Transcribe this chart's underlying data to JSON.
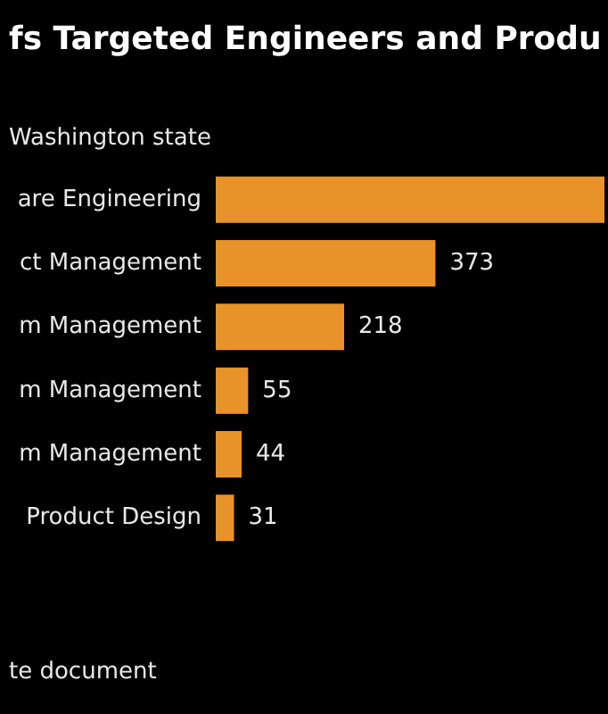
{
  "chart_data": {
    "type": "bar",
    "orientation": "horizontal",
    "title": "fs Targeted Engineers and Produ",
    "subtitle": "Washington state",
    "annotations": [
      "te document"
    ],
    "categories": [
      "are Engineering",
      "ct Management",
      "m Management",
      "m Management",
      "m Management",
      "Product Design"
    ],
    "values": [
      660,
      373,
      218,
      55,
      44,
      31
    ],
    "value_labels": [
      null,
      "373",
      "218",
      "55",
      "44",
      "31"
    ],
    "color": "#e8922a",
    "grid": false
  }
}
